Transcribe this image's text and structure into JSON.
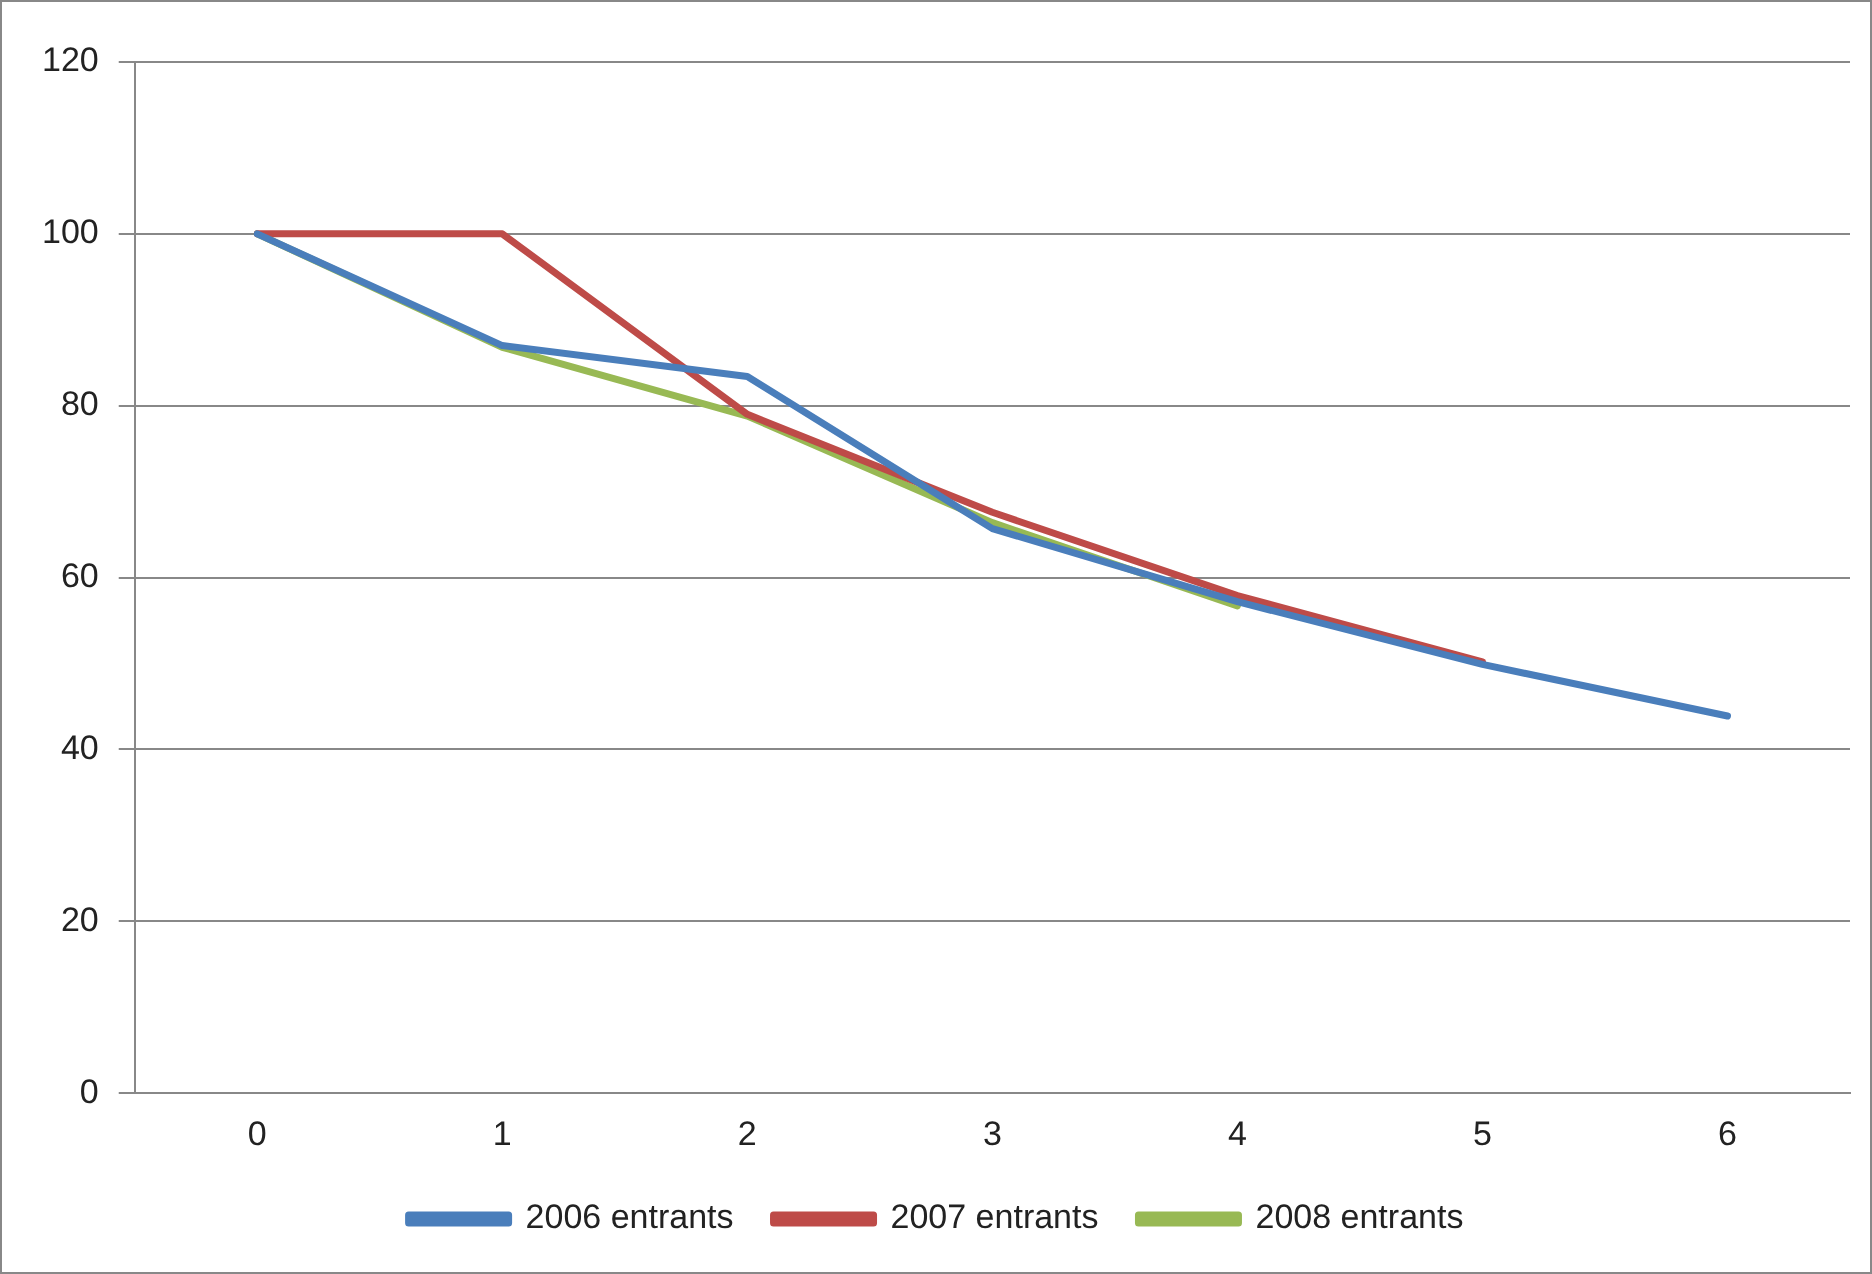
{
  "chart_data": {
    "type": "line",
    "categories": [
      "0",
      "1",
      "2",
      "3",
      "4",
      "5",
      "6"
    ],
    "series": [
      {
        "name": "2006 entrants",
        "color": "#4a7ebb",
        "values": [
          100,
          87,
          83.4,
          65.7,
          57.2,
          49.9,
          43.9
        ]
      },
      {
        "name": "2007 entrants",
        "color": "#be4b48",
        "values": [
          100,
          100,
          79,
          67.6,
          57.9,
          50.2,
          null
        ]
      },
      {
        "name": "2008 entrants",
        "color": "#98b954",
        "values": [
          100,
          86.8,
          78.8,
          66.4,
          56.7,
          null,
          null
        ]
      }
    ],
    "ylim": [
      0,
      120
    ],
    "yticks": [
      0,
      20,
      40,
      60,
      80,
      100,
      120
    ],
    "grid": "y",
    "legend": "bottom",
    "marker": "none",
    "line_style": "solid"
  }
}
